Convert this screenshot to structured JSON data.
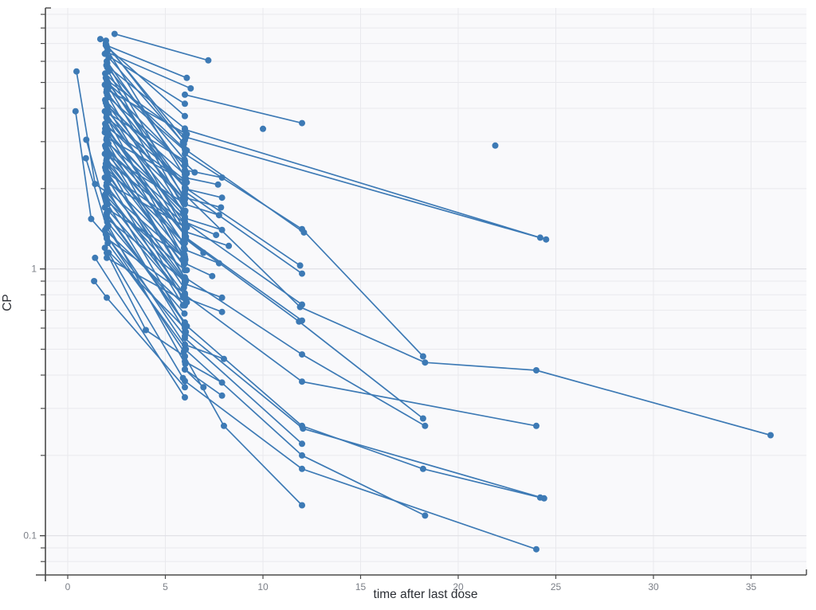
{
  "chart_data": {
    "type": "line",
    "title": "",
    "xlabel": "time after last dose",
    "ylabel": "CP",
    "x_scale": "linear",
    "y_scale": "log",
    "xlim": [
      -1.15,
      37.8
    ],
    "ylim": [
      0.0713,
      9.5
    ],
    "x_ticks": [
      0,
      5,
      10,
      15,
      20,
      25,
      30,
      35
    ],
    "y_major_ticks": [
      0.1,
      1
    ],
    "y_major_tick_labels": [
      "0.1",
      "1"
    ],
    "y_minor_ticks": [
      0.08,
      0.09,
      0.2,
      0.3,
      0.4,
      0.5,
      0.6,
      0.7,
      0.8,
      0.9,
      2,
      3,
      4,
      5,
      6,
      7,
      8,
      9
    ],
    "grid": true,
    "legend": "none",
    "colors": {
      "series": "#3d7ab5",
      "plot_background": "#f9f9fb",
      "page_background": "#ffffff",
      "grid_minor": "#e9e9ed",
      "grid_major": "#dfdfe4",
      "axis_line": "#4a4a4a",
      "tick_label": "#7b7f87",
      "axis_title": "#2b2e34"
    },
    "marker_radius": 4,
    "line_width": 1.7,
    "bundle_note": "two-sample subjects: [t1, cp1, t2, cp2]",
    "bundle": [
      [
        1.95,
        7.0,
        5.95,
        2.94
      ],
      [
        2.0,
        6.8,
        6.0,
        3.74
      ],
      [
        2.05,
        6.6,
        6.05,
        2.18
      ],
      [
        1.9,
        6.4,
        6.0,
        4.16
      ],
      [
        2.1,
        6.2,
        5.9,
        2.98
      ],
      [
        2.0,
        6.0,
        6.1,
        2.28
      ],
      [
        1.98,
        5.8,
        6.0,
        3.36
      ],
      [
        2.02,
        5.7,
        5.98,
        2.57
      ],
      [
        2.08,
        5.5,
        6.02,
        1.65
      ],
      [
        1.92,
        5.4,
        6.0,
        2.81
      ],
      [
        1.95,
        5.2,
        5.95,
        1.87
      ],
      [
        2.0,
        5.1,
        6.0,
        3.16
      ],
      [
        2.05,
        5.0,
        6.05,
        2.0
      ],
      [
        1.9,
        4.9,
        6.0,
        2.45
      ],
      [
        2.1,
        4.8,
        5.9,
        1.63
      ],
      [
        2.0,
        4.7,
        6.1,
        3.2
      ],
      [
        1.98,
        4.6,
        6.0,
        2.02
      ],
      [
        2.02,
        4.5,
        5.98,
        1.4
      ],
      [
        2.08,
        4.4,
        6.02,
        2.46
      ],
      [
        1.92,
        4.3,
        6.0,
        2.02
      ],
      [
        1.95,
        4.2,
        5.95,
        1.76
      ],
      [
        2.0,
        4.1,
        6.0,
        2.26
      ],
      [
        2.05,
        4.0,
        6.05,
        1.32
      ],
      [
        1.9,
        3.9,
        6.0,
        2.54
      ],
      [
        2.1,
        3.85,
        5.9,
        1.85
      ],
      [
        2.0,
        3.8,
        6.1,
        1.44
      ],
      [
        1.98,
        3.7,
        6.0,
        2.15
      ],
      [
        2.02,
        3.65,
        5.98,
        1.64
      ],
      [
        2.08,
        3.6,
        6.02,
        1.08
      ],
      [
        1.92,
        3.5,
        6.0,
        1.82
      ],
      [
        1.95,
        3.45,
        5.95,
        1.24
      ],
      [
        2.0,
        3.4,
        6.0,
        2.11
      ],
      [
        2.05,
        3.3,
        6.05,
        1.32
      ],
      [
        1.9,
        3.25,
        6.0,
        1.63
      ],
      [
        2.1,
        3.2,
        5.9,
        1.09
      ],
      [
        2.0,
        3.1,
        6.1,
        2.11
      ],
      [
        1.98,
        3.05,
        6.0,
        1.34
      ],
      [
        2.02,
        3.0,
        5.98,
        0.93
      ],
      [
        2.08,
        2.95,
        6.02,
        1.65
      ],
      [
        1.92,
        2.9,
        6.0,
        1.36
      ],
      [
        1.95,
        2.85,
        5.95,
        1.2
      ],
      [
        2.0,
        2.8,
        6.0,
        1.54
      ],
      [
        2.05,
        2.75,
        6.05,
        0.91
      ],
      [
        1.9,
        2.7,
        6.0,
        1.76
      ],
      [
        2.1,
        2.65,
        5.9,
        1.27
      ],
      [
        2.0,
        2.6,
        6.1,
        0.99
      ],
      [
        1.98,
        2.55,
        6.0,
        1.48
      ],
      [
        2.02,
        2.5,
        5.98,
        1.13
      ],
      [
        2.08,
        2.45,
        6.02,
        0.74
      ],
      [
        1.92,
        2.4,
        6.0,
        1.25
      ],
      [
        1.95,
        2.35,
        5.95,
        0.85
      ],
      [
        2.0,
        2.3,
        6.0,
        1.43
      ],
      [
        2.05,
        2.25,
        6.05,
        0.9
      ],
      [
        1.9,
        2.2,
        6.0,
        1.1
      ],
      [
        2.1,
        2.15,
        5.9,
        0.73
      ],
      [
        2.0,
        2.1,
        6.1,
        1.43
      ],
      [
        1.98,
        2.05,
        6.0,
        0.9
      ],
      [
        2.02,
        2.0,
        5.98,
        0.62
      ],
      [
        2.08,
        1.95,
        6.02,
        1.09
      ],
      [
        1.92,
        1.9,
        6.0,
        0.89
      ],
      [
        1.95,
        1.85,
        5.95,
        0.78
      ],
      [
        2.0,
        1.8,
        6.0,
        0.99
      ],
      [
        2.05,
        1.75,
        6.05,
        0.58
      ],
      [
        1.9,
        1.7,
        6.0,
        1.11
      ],
      [
        2.1,
        1.65,
        5.9,
        0.79
      ],
      [
        2.0,
        1.6,
        6.1,
        0.61
      ],
      [
        1.98,
        1.55,
        6.0,
        0.9
      ],
      [
        2.02,
        1.5,
        5.98,
        0.68
      ],
      [
        2.08,
        1.45,
        6.02,
        0.44
      ],
      [
        1.92,
        1.4,
        6.0,
        0.73
      ],
      [
        1.95,
        1.35,
        5.95,
        0.49
      ],
      [
        2.0,
        1.3,
        6.0,
        0.81
      ],
      [
        2.05,
        1.25,
        6.05,
        0.5
      ],
      [
        1.9,
        1.2,
        6.0,
        0.6
      ],
      [
        2.1,
        1.15,
        5.9,
        0.39
      ],
      [
        2.0,
        1.1,
        6.1,
        0.75
      ],
      [
        1.98,
        6.9,
        6.0,
        3.04
      ],
      [
        2.02,
        5.9,
        5.98,
        1.83
      ],
      [
        2.08,
        4.95,
        6.02,
        2.77
      ],
      [
        1.92,
        3.35,
        6.0,
        1.57
      ],
      [
        1.95,
        2.48,
        5.95,
        1.04
      ]
    ],
    "trajectories": [
      {
        "pts": [
          [
            2.4,
            7.6
          ],
          [
            7.2,
            6.05
          ]
        ]
      },
      {
        "pts": [
          [
            1.95,
            6.9
          ],
          [
            6.1,
            5.2
          ]
        ]
      },
      {
        "pts": [
          [
            2.0,
            6.5
          ],
          [
            6.3,
            4.75
          ]
        ]
      },
      {
        "pts": [
          [
            1.67,
            7.27
          ],
          [
            1.96,
            7.17
          ]
        ]
      },
      {
        "pts": [
          [
            6.0,
            4.5
          ],
          [
            12.0,
            3.52
          ]
        ]
      },
      {
        "pts": [
          [
            6.0,
            3.33
          ],
          [
            24.2,
            1.31
          ]
        ]
      },
      {
        "pts": [
          [
            6.05,
            3.12
          ],
          [
            24.5,
            1.29
          ]
        ]
      },
      {
        "pts": [
          [
            6.0,
            2.7
          ],
          [
            12.0,
            1.41
          ],
          [
            18.2,
            0.47
          ]
        ]
      },
      {
        "pts": [
          [
            6.1,
            2.78
          ],
          [
            12.1,
            1.37
          ]
        ]
      },
      {
        "pts": [
          [
            6.0,
            2.02
          ],
          [
            11.9,
            1.03
          ]
        ]
      },
      {
        "pts": [
          [
            6.0,
            1.95
          ],
          [
            12.0,
            0.96
          ]
        ]
      },
      {
        "pts": [
          [
            6.0,
            1.9
          ],
          [
            11.9,
            0.72
          ],
          [
            18.3,
            0.446
          ],
          [
            24.0,
            0.417
          ],
          [
            36.0,
            0.238
          ]
        ]
      },
      {
        "pts": [
          [
            6.0,
            1.5
          ],
          [
            12.0,
            0.735
          ]
        ]
      },
      {
        "pts": [
          [
            6.0,
            1.32
          ],
          [
            12.0,
            0.64
          ]
        ]
      },
      {
        "pts": [
          [
            6.05,
            1.3
          ],
          [
            11.85,
            0.635
          ],
          [
            18.2,
            0.275
          ]
        ]
      },
      {
        "pts": [
          [
            6.0,
            0.93
          ],
          [
            12.0,
            0.478
          ],
          [
            18.3,
            0.258
          ]
        ]
      },
      {
        "pts": [
          [
            6.0,
            0.8
          ],
          [
            12.0,
            0.378
          ],
          [
            24.0,
            0.258
          ]
        ]
      },
      {
        "pts": [
          [
            6.0,
            0.62
          ],
          [
            12.0,
            0.258
          ],
          [
            18.2,
            0.178
          ],
          [
            24.2,
            0.139
          ]
        ]
      },
      {
        "pts": [
          [
            6.0,
            0.58
          ],
          [
            12.05,
            0.252
          ],
          [
            24.4,
            0.138
          ]
        ]
      },
      {
        "pts": [
          [
            6.0,
            0.55
          ],
          [
            12.0,
            0.221
          ]
        ]
      },
      {
        "pts": [
          [
            6.0,
            0.5
          ],
          [
            12.0,
            0.2
          ],
          [
            18.3,
            0.119
          ]
        ]
      },
      {
        "pts": [
          [
            6.0,
            0.47
          ],
          [
            8.0,
            0.258
          ],
          [
            12.0,
            0.13
          ]
        ]
      },
      {
        "pts": [
          [
            6.0,
            0.38
          ],
          [
            12.0,
            0.178
          ],
          [
            24.0,
            0.089
          ]
        ]
      },
      {
        "pts": [
          [
            2.0,
            1.15
          ],
          [
            4.0,
            0.59
          ],
          [
            6.0,
            0.47
          ]
        ]
      },
      {
        "pts": [
          [
            6.0,
            2.5
          ],
          [
            6.5,
            2.3
          ]
        ]
      },
      {
        "pts": [
          [
            6.0,
            2.35
          ],
          [
            7.9,
            2.2
          ]
        ]
      },
      {
        "pts": [
          [
            6.0,
            2.2
          ],
          [
            7.7,
            2.07
          ]
        ]
      },
      {
        "pts": [
          [
            6.0,
            2.0
          ],
          [
            7.9,
            1.85
          ]
        ]
      },
      {
        "pts": [
          [
            6.0,
            1.85
          ],
          [
            7.85,
            1.7
          ]
        ]
      },
      {
        "pts": [
          [
            6.0,
            1.75
          ],
          [
            7.75,
            1.59
          ]
        ]
      },
      {
        "pts": [
          [
            6.0,
            1.55
          ],
          [
            7.9,
            1.4
          ]
        ]
      },
      {
        "pts": [
          [
            6.0,
            1.5
          ],
          [
            7.6,
            1.34
          ]
        ]
      },
      {
        "pts": [
          [
            6.0,
            1.38
          ],
          [
            8.25,
            1.22
          ]
        ]
      },
      {
        "pts": [
          [
            6.0,
            1.3
          ],
          [
            6.95,
            1.15
          ]
        ]
      },
      {
        "pts": [
          [
            6.0,
            1.18
          ],
          [
            7.75,
            1.05
          ]
        ]
      },
      {
        "pts": [
          [
            6.0,
            1.05
          ],
          [
            7.4,
            0.94
          ]
        ]
      },
      {
        "pts": [
          [
            6.0,
            0.88
          ],
          [
            7.9,
            0.78
          ]
        ]
      },
      {
        "pts": [
          [
            6.0,
            0.78
          ],
          [
            7.9,
            0.69
          ]
        ]
      },
      {
        "pts": [
          [
            6.0,
            0.52
          ],
          [
            8.0,
            0.46
          ]
        ]
      },
      {
        "pts": [
          [
            6.0,
            0.45
          ],
          [
            7.9,
            0.375
          ]
        ]
      },
      {
        "pts": [
          [
            6.0,
            0.42
          ],
          [
            7.9,
            0.335
          ]
        ]
      },
      {
        "pts": [
          [
            6.0,
            0.42
          ],
          [
            6.95,
            0.36
          ]
        ]
      },
      {
        "pts": [
          [
            0.45,
            5.5
          ],
          [
            1.4,
            2.08
          ],
          [
            2.0,
            1.94
          ],
          [
            6.0,
            0.8
          ]
        ]
      },
      {
        "pts": [
          [
            0.4,
            3.9
          ],
          [
            1.2,
            1.54
          ],
          [
            2.0,
            1.32
          ],
          [
            6.0,
            0.56
          ]
        ]
      },
      {
        "pts": [
          [
            0.95,
            3.05
          ],
          [
            2.0,
            1.62
          ],
          [
            6.0,
            0.63
          ]
        ]
      },
      {
        "pts": [
          [
            0.93,
            2.6
          ],
          [
            2.0,
            1.43
          ],
          [
            6.0,
            0.52
          ]
        ]
      },
      {
        "pts": [
          [
            1.4,
            1.1
          ],
          [
            6.0,
            0.33
          ]
        ]
      },
      {
        "pts": [
          [
            1.35,
            0.9
          ],
          [
            2.0,
            0.78
          ],
          [
            6.0,
            0.36
          ]
        ]
      }
    ],
    "isolated_points": [
      [
        10.0,
        3.35
      ],
      [
        21.9,
        2.9
      ]
    ]
  }
}
